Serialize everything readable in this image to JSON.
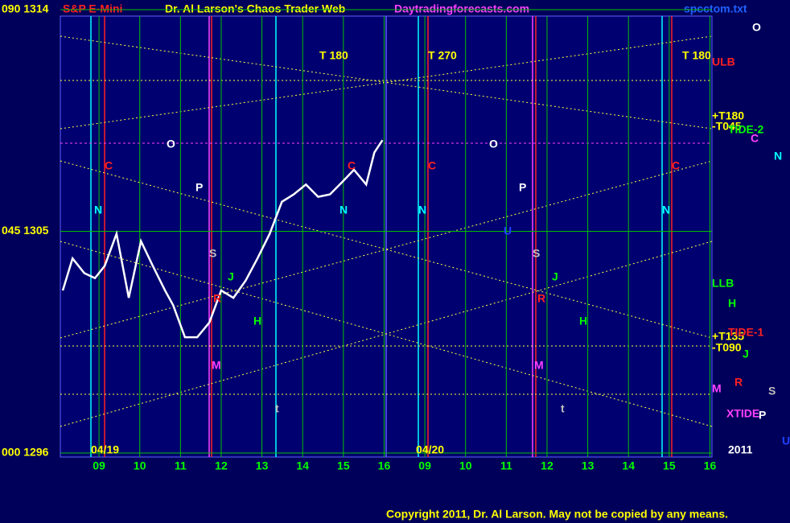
{
  "header": {
    "symbol": "S&P E-Mini",
    "title": "Dr. Al Larson's Chaos Trader Web",
    "site": "Daytradingforecasts.com",
    "file": "spcctom.txt"
  },
  "footer": "Copyright 2011, Dr. Al Larson. May not be copied by any means.",
  "chart_data": {
    "type": "line",
    "color": "#ffffff",
    "grid": true,
    "grid_color": "#00c000",
    "x": [
      -0.89,
      -0.65,
      -0.36,
      -0.1,
      0.14,
      0.43,
      0.73,
      1.03,
      1.32,
      1.62,
      1.82,
      2.11,
      2.41,
      2.71,
      3.0,
      3.3,
      3.6,
      3.89,
      4.19,
      4.49,
      4.78,
      5.08,
      5.38,
      5.67,
      5.97,
      6.26,
      6.56,
      6.76,
      6.96
    ],
    "values": [
      1302.6,
      1303.9,
      1303.3,
      1303.1,
      1303.6,
      1304.9,
      1302.3,
      1304.6,
      1303.6,
      1302.6,
      1302.0,
      1300.7,
      1300.7,
      1301.3,
      1302.6,
      1302.3,
      1303.0,
      1303.9,
      1304.9,
      1306.2,
      1306.5,
      1306.9,
      1306.4,
      1306.5,
      1307.0,
      1307.5,
      1306.9,
      1308.2,
      1308.7
    ],
    "xlim": [
      -0.95,
      15.05
    ],
    "xticks": [
      {
        "value": 0,
        "label": "09"
      },
      {
        "value": 1,
        "label": "10"
      },
      {
        "value": 2,
        "label": "11"
      },
      {
        "value": 3,
        "label": "12"
      },
      {
        "value": 4,
        "label": "13"
      },
      {
        "value": 5,
        "label": "14"
      },
      {
        "value": 6,
        "label": "15"
      },
      {
        "value": 7,
        "label": "16"
      },
      {
        "value": 8,
        "label": "09"
      },
      {
        "value": 9,
        "label": "10"
      },
      {
        "value": 10,
        "label": "11"
      },
      {
        "value": 11,
        "label": "12"
      },
      {
        "value": 12,
        "label": "13"
      },
      {
        "value": 13,
        "label": "14"
      },
      {
        "value": 14,
        "label": "15"
      },
      {
        "value": 15,
        "label": "16"
      }
    ],
    "ylim": [
      1296,
      1314
    ],
    "yticks": [
      {
        "value": 1296,
        "label": "000 1296"
      },
      {
        "value": 1305,
        "label": "045 1305"
      },
      {
        "value": 1314,
        "label": "090 1314"
      }
    ],
    "annotations": [
      {
        "text": "04/19",
        "color": "#ffff00"
      },
      {
        "text": "04/20",
        "color": "#ffff00"
      },
      {
        "text": "2011",
        "color": "#ffffff"
      },
      {
        "text": "O",
        "color": "#ffffff"
      },
      {
        "text": "ULB",
        "color": "#ff2020"
      },
      {
        "text": "+T180",
        "color": "#ffff00"
      },
      {
        "text": "-T045",
        "color": "#ffff00"
      },
      {
        "text": "TIDE-2",
        "color": "#00ff00"
      },
      {
        "text": "C",
        "color": "#ff40ff"
      },
      {
        "text": "N",
        "color": "#00ffff"
      },
      {
        "text": "LLB",
        "color": "#00ff00"
      },
      {
        "text": "H",
        "color": "#00ff00"
      },
      {
        "text": "+T135",
        "color": "#ffff00"
      },
      {
        "text": "TIDE-1",
        "color": "#ff2020"
      },
      {
        "text": "-T090",
        "color": "#ffff00"
      },
      {
        "text": "J",
        "color": "#00ff00"
      },
      {
        "text": "M",
        "color": "#ff40ff"
      },
      {
        "text": "R",
        "color": "#ff2020"
      },
      {
        "text": "S",
        "color": "#c0c0c0"
      },
      {
        "text": "XTIDE",
        "color": "#ff40ff"
      },
      {
        "text": "P",
        "color": "#ffffff"
      },
      {
        "text": "U",
        "color": "#2040ff"
      },
      {
        "text": "T 180",
        "color": "#ffff00"
      },
      {
        "text": "T 270",
        "color": "#ffff00"
      },
      {
        "text": "T 180",
        "color": "#ffff00"
      },
      {
        "text": "C",
        "color": "#ff2020"
      },
      {
        "text": "N",
        "color": "#00ffff"
      },
      {
        "text": "O",
        "color": "#ffffff"
      },
      {
        "text": "P",
        "color": "#ffffff"
      },
      {
        "text": "S",
        "color": "#c0c0c0"
      },
      {
        "text": "J",
        "color": "#00ff00"
      },
      {
        "text": "R",
        "color": "#ff2020"
      },
      {
        "text": "H",
        "color": "#00ff00"
      },
      {
        "text": "M",
        "color": "#ff40ff"
      },
      {
        "text": "t",
        "color": "#c0c0c0"
      },
      {
        "text": "N",
        "color": "#00ffff"
      },
      {
        "text": "C",
        "color": "#ff2020"
      },
      {
        "text": "C",
        "color": "#ff2020"
      },
      {
        "text": "N",
        "color": "#00ffff"
      },
      {
        "text": "O",
        "color": "#ffffff"
      },
      {
        "text": "P",
        "color": "#ffffff"
      },
      {
        "text": "U",
        "color": "#2040ff"
      },
      {
        "text": "S",
        "color": "#c0c0c0"
      },
      {
        "text": "R",
        "color": "#ff2020"
      },
      {
        "text": "J",
        "color": "#00ff00"
      },
      {
        "text": "H",
        "color": "#00ff00"
      },
      {
        "text": "M",
        "color": "#ff40ff"
      },
      {
        "text": "t",
        "color": "#c0c0c0"
      },
      {
        "text": "N",
        "color": "#00ffff"
      },
      {
        "text": "C",
        "color": "#ff2020"
      }
    ]
  }
}
